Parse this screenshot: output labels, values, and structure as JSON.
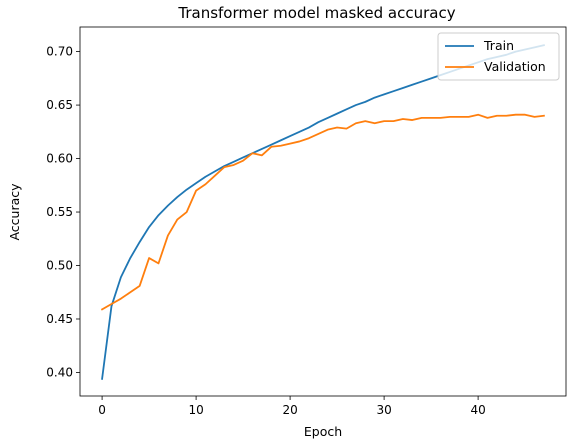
{
  "chart_data": {
    "type": "line",
    "title": "Transformer model masked accuracy",
    "xlabel": "Epoch",
    "ylabel": "Accuracy",
    "xlim": [
      -2.35,
      49.35
    ],
    "ylim": [
      0.378,
      0.723
    ],
    "xticks": [
      0,
      10,
      20,
      30,
      40
    ],
    "yticks": [
      0.4,
      0.45,
      0.5,
      0.55,
      0.6,
      0.65,
      0.7
    ],
    "yticks_labels": [
      "0.40",
      "0.45",
      "0.50",
      "0.55",
      "0.60",
      "0.65",
      "0.70"
    ],
    "grid": false,
    "legend": "top-right",
    "x": [
      0,
      1,
      2,
      3,
      4,
      5,
      6,
      7,
      8,
      9,
      10,
      11,
      12,
      13,
      14,
      15,
      16,
      17,
      18,
      19,
      20,
      21,
      22,
      23,
      24,
      25,
      26,
      27,
      28,
      29,
      30,
      31,
      32,
      33,
      34,
      35,
      36,
      37,
      38,
      39,
      40,
      41,
      42,
      43,
      44,
      45,
      46,
      47
    ],
    "series": [
      {
        "name": "Train",
        "color": "#1f77b4",
        "values": [
          0.394,
          0.462,
          0.489,
          0.507,
          0.522,
          0.536,
          0.547,
          0.556,
          0.564,
          0.571,
          0.577,
          0.583,
          0.588,
          0.593,
          0.597,
          0.601,
          0.605,
          0.609,
          0.613,
          0.617,
          0.621,
          0.625,
          0.629,
          0.634,
          0.638,
          0.642,
          0.646,
          0.65,
          0.653,
          0.657,
          0.66,
          0.663,
          0.666,
          0.669,
          0.672,
          0.675,
          0.678,
          0.681,
          0.684,
          0.687,
          0.69,
          0.693,
          0.695,
          0.697,
          0.7,
          0.702,
          0.704,
          0.706
        ]
      },
      {
        "name": "Validation",
        "color": "#ff7f0e",
        "values": [
          0.459,
          0.464,
          0.469,
          0.475,
          0.481,
          0.507,
          0.502,
          0.528,
          0.543,
          0.55,
          0.57,
          0.576,
          0.584,
          0.592,
          0.594,
          0.598,
          0.605,
          0.603,
          0.611,
          0.612,
          0.614,
          0.616,
          0.619,
          0.623,
          0.627,
          0.629,
          0.628,
          0.633,
          0.635,
          0.633,
          0.635,
          0.635,
          0.637,
          0.636,
          0.638,
          0.638,
          0.638,
          0.639,
          0.639,
          0.639,
          0.641,
          0.638,
          0.64,
          0.64,
          0.641,
          0.641,
          0.639,
          0.64
        ]
      }
    ]
  }
}
